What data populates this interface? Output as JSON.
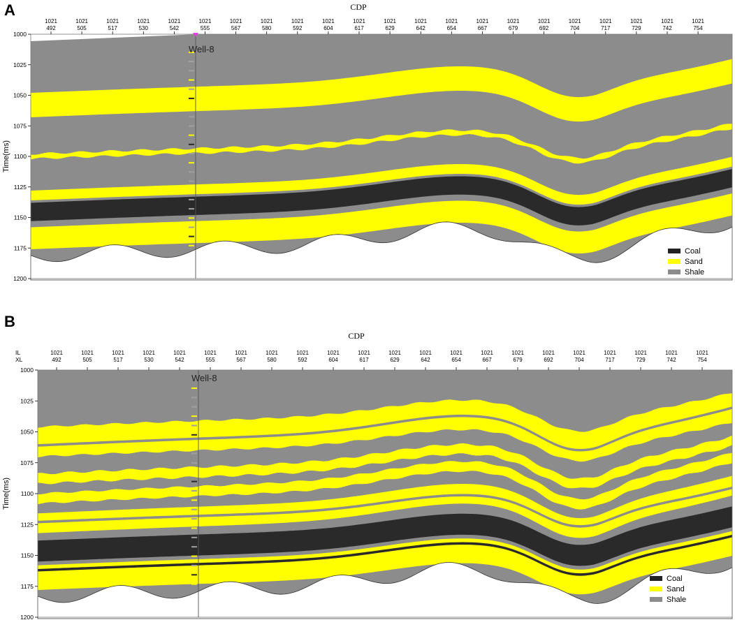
{
  "panels": [
    {
      "letter": "A",
      "axis_title": "CDP",
      "y_label": "Time(ms)",
      "il_label": "",
      "xl_label": "",
      "well_label": "Well-8",
      "y_ticks": [
        "1000",
        "1025",
        "1050",
        "1075",
        "1100",
        "1125",
        "1150",
        "1175",
        "1200"
      ],
      "x_ticks": [
        {
          "il": "1021",
          "xl": "492"
        },
        {
          "il": "1021",
          "xl": "505"
        },
        {
          "il": "1021",
          "xl": "517"
        },
        {
          "il": "1021",
          "xl": "530"
        },
        {
          "il": "1021",
          "xl": "542"
        },
        {
          "il": "1021",
          "xl": "555"
        },
        {
          "il": "1021",
          "xl": "567"
        },
        {
          "il": "1021",
          "xl": "580"
        },
        {
          "il": "1021",
          "xl": "592"
        },
        {
          "il": "1021",
          "xl": "604"
        },
        {
          "il": "1021",
          "xl": "617"
        },
        {
          "il": "1021",
          "xl": "629"
        },
        {
          "il": "1021",
          "xl": "642"
        },
        {
          "il": "1021",
          "xl": "654"
        },
        {
          "il": "1021",
          "xl": "667"
        },
        {
          "il": "1021",
          "xl": "679"
        },
        {
          "il": "1021",
          "xl": "692"
        },
        {
          "il": "1021",
          "xl": "704"
        },
        {
          "il": "1021",
          "xl": "717"
        },
        {
          "il": "1021",
          "xl": "729"
        },
        {
          "il": "1021",
          "xl": "742"
        },
        {
          "il": "1021",
          "xl": "754"
        }
      ],
      "legend": [
        {
          "label": "Coal",
          "color": "#222222"
        },
        {
          "label": "Sand",
          "color": "#ffff00"
        },
        {
          "label": "Shale",
          "color": "#8c8c8c"
        }
      ]
    },
    {
      "letter": "B",
      "axis_title": "CDP",
      "y_label": "Time(ms)",
      "il_label": "IL",
      "xl_label": "XL",
      "well_label": "Well-8",
      "y_ticks": [
        "1000",
        "1025",
        "1050",
        "1075",
        "1100",
        "1125",
        "1150",
        "1175",
        "1200"
      ],
      "x_ticks": [
        {
          "il": "1021",
          "xl": "492"
        },
        {
          "il": "1021",
          "xl": "505"
        },
        {
          "il": "1021",
          "xl": "517"
        },
        {
          "il": "1021",
          "xl": "530"
        },
        {
          "il": "1021",
          "xl": "542"
        },
        {
          "il": "1021",
          "xl": "555"
        },
        {
          "il": "1021",
          "xl": "567"
        },
        {
          "il": "1021",
          "xl": "580"
        },
        {
          "il": "1021",
          "xl": "592"
        },
        {
          "il": "1021",
          "xl": "604"
        },
        {
          "il": "1021",
          "xl": "617"
        },
        {
          "il": "1021",
          "xl": "629"
        },
        {
          "il": "1021",
          "xl": "642"
        },
        {
          "il": "1021",
          "xl": "654"
        },
        {
          "il": "1021",
          "xl": "667"
        },
        {
          "il": "1021",
          "xl": "679"
        },
        {
          "il": "1021",
          "xl": "692"
        },
        {
          "il": "1021",
          "xl": "704"
        },
        {
          "il": "1021",
          "xl": "717"
        },
        {
          "il": "1021",
          "xl": "729"
        },
        {
          "il": "1021",
          "xl": "742"
        },
        {
          "il": "1021",
          "xl": "754"
        }
      ],
      "legend": [
        {
          "label": "Coal",
          "color": "#222222"
        },
        {
          "label": "Sand",
          "color": "#ffff00"
        },
        {
          "label": "Shale",
          "color": "#8c8c8c"
        }
      ]
    }
  ],
  "colors": {
    "shale": "#8c8c8c",
    "sand": "#ffff00",
    "coal": "#2a2a2a",
    "well_marker": "#e040e0"
  }
}
